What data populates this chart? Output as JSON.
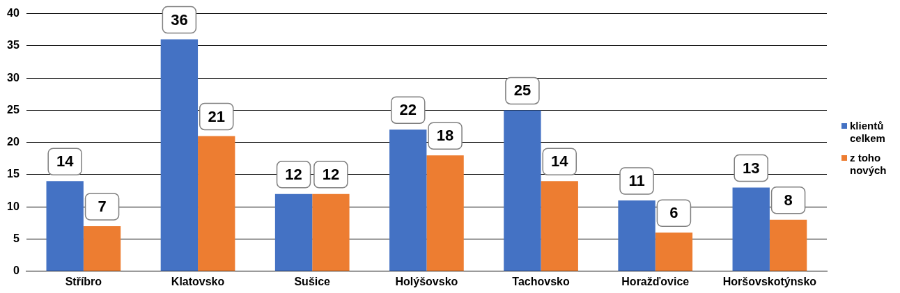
{
  "chart_data": {
    "type": "bar",
    "categories": [
      "Stříbro",
      "Klatovsko",
      "Sušice",
      "Holýšovsko",
      "Tachovsko",
      "Horažďovice",
      "Horšovskotýnsko"
    ],
    "series": [
      {
        "name": "klientů celkem",
        "color": "#4472c4",
        "values": [
          14,
          36,
          12,
          22,
          25,
          11,
          13
        ]
      },
      {
        "name": "z toho nových",
        "color": "#ed7d31",
        "values": [
          7,
          21,
          12,
          18,
          14,
          6,
          8
        ]
      }
    ],
    "data_labels": true,
    "ylim": [
      0,
      40
    ],
    "yticks": [
      0,
      5,
      10,
      15,
      20,
      25,
      30,
      35,
      40
    ],
    "grid": "y",
    "legend": "right"
  }
}
